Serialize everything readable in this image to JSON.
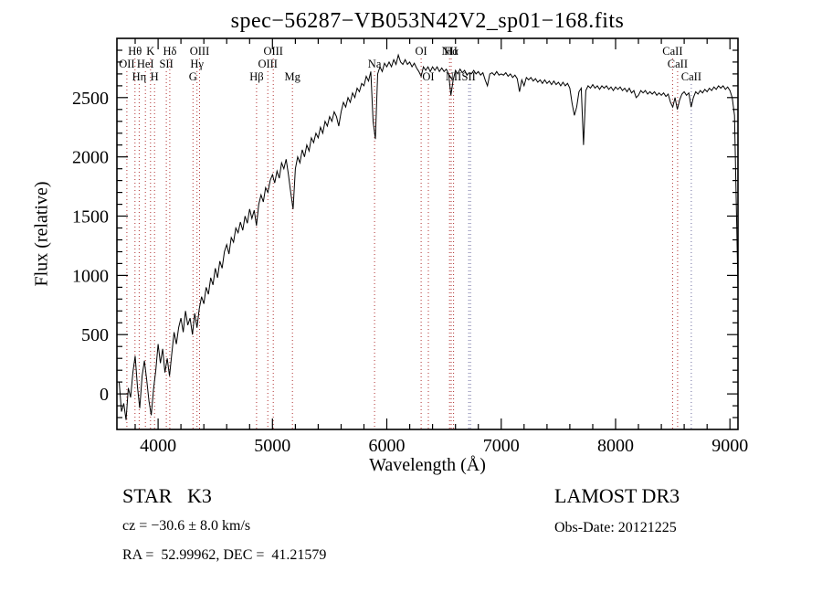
{
  "title": "spec−56287−VB053N42V2_sp01−168.fits",
  "annotations": {
    "object_class": "STAR   K3",
    "survey": "LAMOST DR3",
    "cz": "cz = −30.6 ± 8.0 km/s",
    "obs_date": "Obs-Date: 20121225",
    "ra_dec": "RA =  52.99962, DEC =  41.21579"
  },
  "chart_data": {
    "type": "line",
    "title": "spec−56287−VB053N42V2_sp01−168.fits",
    "xlabel": "Wavelength (Å)",
    "ylabel": "Flux (relative)",
    "xlim": [
      3640,
      9070
    ],
    "ylim": [
      -300,
      3000
    ],
    "xticks": [
      4000,
      5000,
      6000,
      7000,
      8000,
      9000
    ],
    "yticks": [
      0,
      500,
      1000,
      1500,
      2000,
      2500
    ],
    "grid": false,
    "line_color": "#000000",
    "marker_color": "#b03030",
    "marker_alt_color": "#6b6b9e",
    "series": [
      {
        "name": "spectrum",
        "x_start": 3660,
        "x_step": 20,
        "flux": [
          100,
          -150,
          -80,
          -220,
          50,
          -30,
          180,
          320,
          60,
          -120,
          150,
          280,
          120,
          -60,
          -180,
          40,
          200,
          420,
          260,
          380,
          180,
          300,
          150,
          340,
          520,
          420,
          560,
          640,
          520,
          700,
          580,
          640,
          500,
          680,
          560,
          720,
          820,
          760,
          900,
          840,
          980,
          920,
          1060,
          980,
          1120,
          1060,
          1200,
          1260,
          1180,
          1320,
          1280,
          1400,
          1360,
          1450,
          1380,
          1500,
          1440,
          1560,
          1480,
          1550,
          1420,
          1600,
          1680,
          1620,
          1740,
          1700,
          1800,
          1850,
          1780,
          1880,
          1820,
          1950,
          1900,
          1980,
          1850,
          1700,
          1560,
          1900,
          2000,
          1950,
          2060,
          2000,
          2100,
          2050,
          2160,
          2120,
          2200,
          2160,
          2250,
          2200,
          2300,
          2260,
          2340,
          2300,
          2380,
          2340,
          2260,
          2380,
          2460,
          2420,
          2500,
          2460,
          2540,
          2500,
          2580,
          2550,
          2620,
          2600,
          2680,
          2640,
          2720,
          2300,
          2150,
          2700,
          2760,
          2720,
          2790,
          2760,
          2800,
          2760,
          2820,
          2780,
          2860,
          2800,
          2780,
          2820,
          2780,
          2800,
          2760,
          2790,
          2750,
          2720,
          2680,
          2760,
          2730,
          2760,
          2720,
          2760,
          2730,
          2760,
          2720,
          2750,
          2720,
          2740,
          2700,
          2520,
          2650,
          2730,
          2700,
          2740,
          2710,
          2730,
          2690,
          2710,
          2700,
          2730,
          2700,
          2720,
          2690,
          2710,
          2650,
          2600,
          2700,
          2710,
          2690,
          2720,
          2690,
          2700,
          2690,
          2710,
          2680,
          2700,
          2670,
          2690,
          2660,
          2550,
          2650,
          2600,
          2670,
          2650,
          2670,
          2640,
          2660,
          2630,
          2650,
          2620,
          2650,
          2620,
          2640,
          2610,
          2640,
          2610,
          2630,
          2600,
          2630,
          2600,
          2620,
          2580,
          2450,
          2350,
          2420,
          2550,
          2580,
          2100,
          2560,
          2600,
          2580,
          2610,
          2580,
          2600,
          2570,
          2600,
          2580,
          2600,
          2570,
          2590,
          2560,
          2590,
          2570,
          2590,
          2560,
          2580,
          2550,
          2580,
          2540,
          2560,
          2500,
          2520,
          2560,
          2540,
          2560,
          2530,
          2550,
          2530,
          2550,
          2520,
          2540,
          2520,
          2540,
          2510,
          2530,
          2460,
          2420,
          2500,
          2400,
          2480,
          2530,
          2550,
          2520,
          2540,
          2420,
          2500,
          2550,
          2530,
          2560,
          2540,
          2570,
          2550,
          2580,
          2560,
          2590,
          2570,
          2600,
          2580,
          2600,
          2570,
          2590,
          2560,
          2500,
          2350,
          1400,
          350
        ]
      }
    ],
    "spectral_lines": [
      {
        "wl": 3727,
        "label": "OII",
        "row": 2
      },
      {
        "wl": 3798,
        "label": "Hθ",
        "row": 1
      },
      {
        "wl": 3835,
        "label": "Hη",
        "row": 3
      },
      {
        "wl": 3889,
        "label": "HeI",
        "row": 2
      },
      {
        "wl": 3934,
        "label": "K",
        "row": 1
      },
      {
        "wl": 3969,
        "label": "H",
        "row": 3
      },
      {
        "wl": 4072,
        "label": "SII",
        "row": 2
      },
      {
        "wl": 4102,
        "label": "Hδ",
        "row": 1
      },
      {
        "wl": 4305,
        "label": "G",
        "row": 3
      },
      {
        "wl": 4340,
        "label": "Hγ",
        "row": 2
      },
      {
        "wl": 4363,
        "label": "OIII",
        "row": 1
      },
      {
        "wl": 4861,
        "label": "Hβ",
        "row": 3
      },
      {
        "wl": 4959,
        "label": "OIII",
        "row": 2
      },
      {
        "wl": 5007,
        "label": "OIII",
        "row": 1
      },
      {
        "wl": 5175,
        "label": "Mg",
        "row": 3
      },
      {
        "wl": 5893,
        "label": "Na",
        "row": 2
      },
      {
        "wl": 6300,
        "label": "OI",
        "row": 1
      },
      {
        "wl": 6363,
        "label": "OI",
        "row": 3
      },
      {
        "wl": 6548,
        "label": "NII",
        "row": 1
      },
      {
        "wl": 6563,
        "label": "Hα",
        "row": 1
      },
      {
        "wl": 6583,
        "label": "NII",
        "row": 3
      },
      {
        "wl": 6716,
        "label": "SII",
        "row": 3,
        "alt": true
      },
      {
        "wl": 6731,
        "label": "",
        "row": 3,
        "alt": true
      },
      {
        "wl": 8498,
        "label": "CaII",
        "row": 1
      },
      {
        "wl": 8542,
        "label": "CaII",
        "row": 2
      },
      {
        "wl": 8662,
        "label": "CaII",
        "row": 3,
        "alt": true
      }
    ]
  }
}
